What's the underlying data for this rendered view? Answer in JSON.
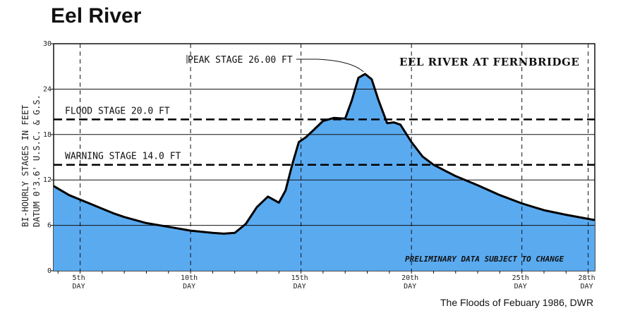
{
  "page": {
    "title": "Eel River",
    "source": "The Floods of Febuary 1986, DWR"
  },
  "chart_data": {
    "type": "area",
    "title": "EEL RIVER AT FERNBRIDGE",
    "ylabel_line1": "BI-HOURLY STAGES IN FEET",
    "ylabel_line2": "DATUM 0'3.6' U.S.C. & G.S.",
    "ylim": [
      0,
      30
    ],
    "xlim": [
      3.8,
      28.3
    ],
    "yticks": [
      0,
      6,
      12,
      18,
      24,
      30
    ],
    "xticks": [
      {
        "day": 5,
        "label": "5th",
        "sub": "DAY"
      },
      {
        "day": 10,
        "label": "10th",
        "sub": "DAY"
      },
      {
        "day": 15,
        "label": "15th",
        "sub": "DAY"
      },
      {
        "day": 20,
        "label": "20th",
        "sub": "DAY"
      },
      {
        "day": 25,
        "label": "25th",
        "sub": "DAY"
      },
      {
        "day": 28,
        "label": "28th",
        "sub": "DAY"
      }
    ],
    "grid": true,
    "fill_color": "#5aaaf0",
    "series": [
      {
        "x": [
          3.8,
          4.5,
          5.0,
          5.5,
          6.0,
          6.5,
          7.0,
          8.0,
          9.0,
          10.0,
          11.0,
          11.5,
          12.0,
          12.5,
          13.0,
          13.5,
          14.0,
          14.3,
          14.6,
          14.9,
          15.2,
          15.5,
          16.0,
          16.5,
          17.0,
          17.3,
          17.6,
          17.9,
          18.2,
          18.5,
          18.9,
          19.2,
          19.5,
          20.0,
          20.5,
          21.0,
          22.0,
          23.0,
          24.0,
          25.0,
          26.0,
          27.0,
          28.3
        ],
        "y": [
          11.2,
          10.0,
          9.4,
          8.8,
          8.2,
          7.6,
          7.1,
          6.3,
          5.8,
          5.3,
          5.0,
          4.9,
          5.0,
          6.2,
          8.4,
          9.8,
          9.0,
          10.6,
          14.0,
          17.0,
          17.6,
          18.4,
          19.8,
          20.2,
          20.1,
          22.5,
          25.5,
          26.0,
          25.3,
          22.6,
          19.5,
          19.6,
          19.3,
          17.0,
          15.1,
          14.0,
          12.5,
          11.3,
          10.0,
          8.9,
          8.0,
          7.4,
          6.7
        ]
      }
    ],
    "reference_lines": [
      {
        "value": 20.0,
        "label": "FLOOD STAGE 20.0 FT"
      },
      {
        "value": 14.0,
        "label": "WARNING STAGE 14.0 FT"
      }
    ],
    "peak": {
      "x": 17.9,
      "y": 26.0,
      "label": "PEAK STAGE 26.00 FT"
    },
    "note": "PRELIMINARY DATA SUBJECT TO CHANGE"
  }
}
